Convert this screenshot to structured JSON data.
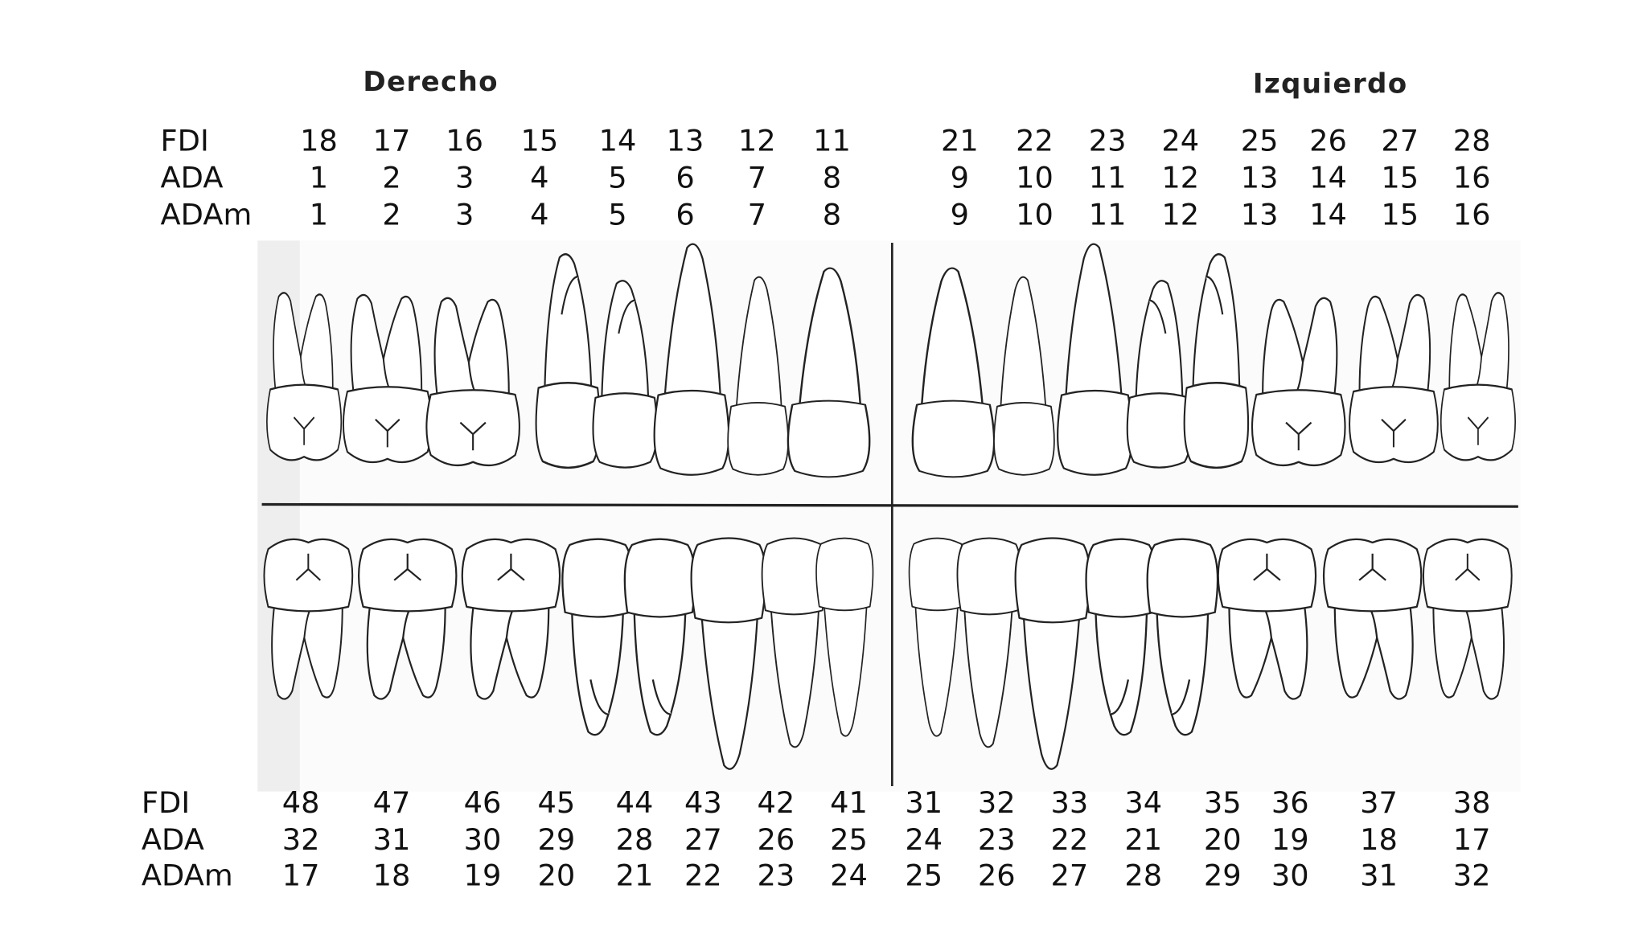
{
  "sides": {
    "right": "Derecho",
    "left": "Izquierdo"
  },
  "upper": {
    "rows": [
      {
        "label": "FDI",
        "values": [
          18,
          17,
          16,
          15,
          14,
          13,
          12,
          11,
          21,
          22,
          23,
          24,
          25,
          26,
          27,
          28
        ]
      },
      {
        "label": "ADA",
        "values": [
          1,
          2,
          3,
          4,
          5,
          6,
          7,
          8,
          9,
          10,
          11,
          12,
          13,
          14,
          15,
          16
        ]
      },
      {
        "label": "ADAm",
        "values": [
          1,
          2,
          3,
          4,
          5,
          6,
          7,
          8,
          9,
          10,
          11,
          12,
          13,
          14,
          15,
          16
        ]
      }
    ]
  },
  "lower": {
    "rows": [
      {
        "label": "FDI",
        "values": [
          48,
          47,
          46,
          45,
          44,
          43,
          42,
          41,
          31,
          32,
          33,
          34,
          35,
          36,
          37,
          38
        ]
      },
      {
        "label": "ADA",
        "values": [
          32,
          31,
          30,
          29,
          28,
          27,
          26,
          25,
          24,
          23,
          22,
          21,
          20,
          19,
          18,
          17
        ]
      },
      {
        "label": "ADAm",
        "values": [
          17,
          18,
          19,
          20,
          21,
          22,
          23,
          24,
          25,
          26,
          27,
          28,
          29,
          30,
          31,
          32
        ]
      }
    ]
  }
}
